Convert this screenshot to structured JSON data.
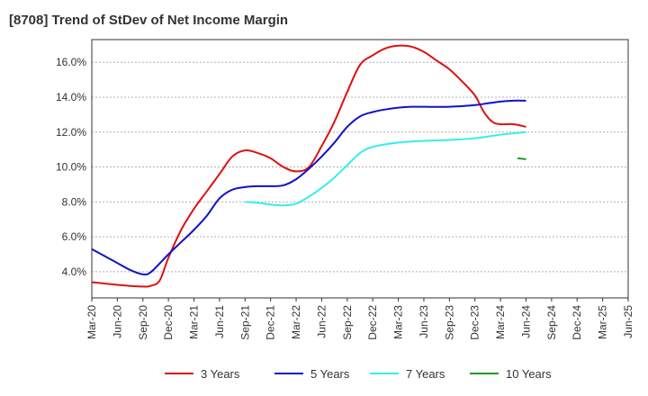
{
  "chart_data": {
    "type": "line",
    "title": "[8708]  Trend of StDev of Net Income Margin",
    "xlabel": "",
    "ylabel": "",
    "x_ticks": [
      "Mar-20",
      "Jun-20",
      "Sep-20",
      "Dec-20",
      "Mar-21",
      "Jun-21",
      "Sep-21",
      "Dec-21",
      "Mar-22",
      "Jun-22",
      "Sep-22",
      "Dec-22",
      "Mar-23",
      "Jun-23",
      "Sep-23",
      "Dec-23",
      "Mar-24",
      "Jun-24",
      "Sep-24",
      "Dec-24",
      "Mar-25",
      "Jun-25"
    ],
    "y_ticks": [
      "4.0%",
      "6.0%",
      "8.0%",
      "10.0%",
      "12.0%",
      "14.0%",
      "16.0%"
    ],
    "ylim": [
      2.5,
      17.3
    ],
    "y_tick_values": [
      4,
      6,
      8,
      10,
      12,
      14,
      16
    ],
    "grid": "horizontal dashed",
    "legend_position": "bottom",
    "series": [
      {
        "name": "3 Years",
        "color": "#dd1111",
        "points": [
          [
            0,
            3.4
          ],
          [
            1,
            3.25
          ],
          [
            2,
            3.15
          ],
          [
            2.33,
            3.2
          ],
          [
            2.66,
            3.5
          ],
          [
            3,
            4.8
          ],
          [
            3.5,
            6.4
          ],
          [
            4,
            7.6
          ],
          [
            4.5,
            8.6
          ],
          [
            5,
            9.6
          ],
          [
            5.5,
            10.6
          ],
          [
            6,
            10.95
          ],
          [
            6.5,
            10.8
          ],
          [
            7,
            10.5
          ],
          [
            7.5,
            10.0
          ],
          [
            8,
            9.75
          ],
          [
            8.5,
            10.0
          ],
          [
            9,
            11.2
          ],
          [
            9.5,
            12.6
          ],
          [
            10,
            14.3
          ],
          [
            10.5,
            15.85
          ],
          [
            11,
            16.4
          ],
          [
            11.5,
            16.8
          ],
          [
            12,
            16.95
          ],
          [
            12.5,
            16.9
          ],
          [
            13,
            16.6
          ],
          [
            13.5,
            16.1
          ],
          [
            14,
            15.6
          ],
          [
            14.5,
            14.9
          ],
          [
            15,
            14.1
          ],
          [
            15.33,
            13.2
          ],
          [
            15.67,
            12.6
          ],
          [
            16,
            12.45
          ],
          [
            16.5,
            12.45
          ],
          [
            17,
            12.3
          ]
        ]
      },
      {
        "name": "5 Years",
        "color": "#1111cc",
        "points": [
          [
            0,
            5.3
          ],
          [
            0.5,
            4.9
          ],
          [
            1,
            4.5
          ],
          [
            1.5,
            4.1
          ],
          [
            2,
            3.85
          ],
          [
            2.33,
            4.0
          ],
          [
            3,
            5.0
          ],
          [
            3.5,
            5.7
          ],
          [
            4,
            6.4
          ],
          [
            4.5,
            7.2
          ],
          [
            5,
            8.2
          ],
          [
            5.5,
            8.7
          ],
          [
            6,
            8.85
          ],
          [
            6.5,
            8.9
          ],
          [
            7,
            8.9
          ],
          [
            7.5,
            8.95
          ],
          [
            8,
            9.3
          ],
          [
            8.5,
            9.9
          ],
          [
            9,
            10.6
          ],
          [
            9.5,
            11.4
          ],
          [
            10,
            12.3
          ],
          [
            10.5,
            12.9
          ],
          [
            11,
            13.15
          ],
          [
            11.5,
            13.3
          ],
          [
            12,
            13.4
          ],
          [
            12.5,
            13.45
          ],
          [
            13,
            13.45
          ],
          [
            14,
            13.45
          ],
          [
            15,
            13.55
          ],
          [
            15.5,
            13.65
          ],
          [
            16,
            13.75
          ],
          [
            16.5,
            13.8
          ],
          [
            17,
            13.8
          ]
        ]
      },
      {
        "name": "7 Years",
        "color": "#33eeee",
        "points": [
          [
            6,
            8.0
          ],
          [
            6.5,
            7.95
          ],
          [
            7,
            7.85
          ],
          [
            7.5,
            7.8
          ],
          [
            8,
            7.9
          ],
          [
            8.5,
            8.3
          ],
          [
            9,
            8.8
          ],
          [
            9.5,
            9.4
          ],
          [
            10,
            10.1
          ],
          [
            10.5,
            10.8
          ],
          [
            11,
            11.15
          ],
          [
            12,
            11.4
          ],
          [
            13,
            11.5
          ],
          [
            14,
            11.55
          ],
          [
            15,
            11.65
          ],
          [
            16,
            11.85
          ],
          [
            17,
            12.0
          ]
        ]
      },
      {
        "name": "10 Years",
        "color": "#229922",
        "points": [
          [
            16.67,
            10.5
          ],
          [
            17,
            10.45
          ]
        ]
      }
    ]
  }
}
